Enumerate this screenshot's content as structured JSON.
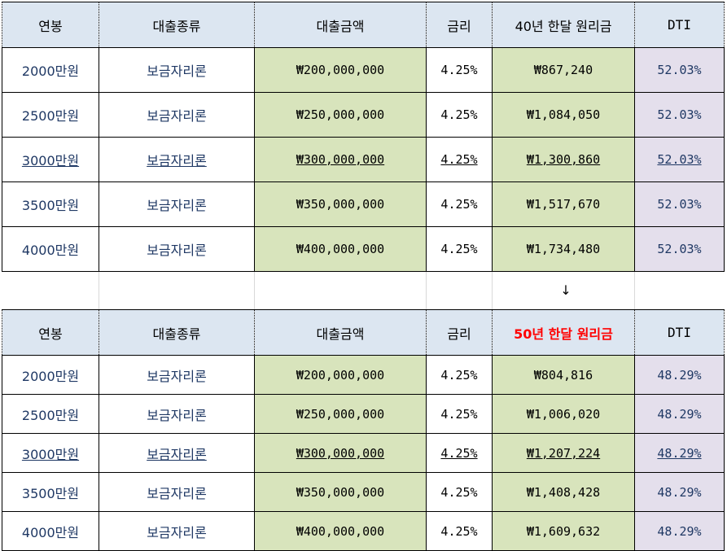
{
  "headers1": [
    "연봉",
    "대출종류",
    "대출금액",
    "금리",
    "40년 한달 원리금",
    "DTI"
  ],
  "headers2": [
    "연봉",
    "대출종류",
    "대출금액",
    "금리",
    "50년 한달 원리금",
    "DTI"
  ],
  "arrow": "↓",
  "table1": [
    {
      "salary": "2000만원",
      "type": "보금자리론",
      "amount": "₩200,000,000",
      "rate": "4.25%",
      "monthly": "₩867,240",
      "dti": "52.03%"
    },
    {
      "salary": "2500만원",
      "type": "보금자리론",
      "amount": "₩250,000,000",
      "rate": "4.25%",
      "monthly": "₩1,084,050",
      "dti": "52.03%"
    },
    {
      "salary": "3000만원",
      "type": "보금자리론",
      "amount": "₩300,000,000",
      "rate": "4.25%",
      "monthly": "₩1,300,860",
      "dti": "52.03%"
    },
    {
      "salary": "3500만원",
      "type": "보금자리론",
      "amount": "₩350,000,000",
      "rate": "4.25%",
      "monthly": "₩1,517,670",
      "dti": "52.03%"
    },
    {
      "salary": "4000만원",
      "type": "보금자리론",
      "amount": "₩400,000,000",
      "rate": "4.25%",
      "monthly": "₩1,734,480",
      "dti": "52.03%"
    }
  ],
  "table2": [
    {
      "salary": "2000만원",
      "type": "보금자리론",
      "amount": "₩200,000,000",
      "rate": "4.25%",
      "monthly": "₩804,816",
      "dti": "48.29%"
    },
    {
      "salary": "2500만원",
      "type": "보금자리론",
      "amount": "₩250,000,000",
      "rate": "4.25%",
      "monthly": "₩1,006,020",
      "dti": "48.29%"
    },
    {
      "salary": "3000만원",
      "type": "보금자리론",
      "amount": "₩300,000,000",
      "rate": "4.25%",
      "monthly": "₩1,207,224",
      "dti": "48.29%"
    },
    {
      "salary": "3500만원",
      "type": "보금자리론",
      "amount": "₩350,000,000",
      "rate": "4.25%",
      "monthly": "₩1,408,428",
      "dti": "48.29%"
    },
    {
      "salary": "4000만원",
      "type": "보금자리론",
      "amount": "₩400,000,000",
      "rate": "4.25%",
      "monthly": "₩1,609,632",
      "dti": "48.29%"
    }
  ],
  "colors": {
    "header_bg": "#dce6f1",
    "green": "#d8e4bc",
    "lavender": "#e4dfec",
    "text": "#1f3864",
    "highlight": "#ff0000"
  }
}
